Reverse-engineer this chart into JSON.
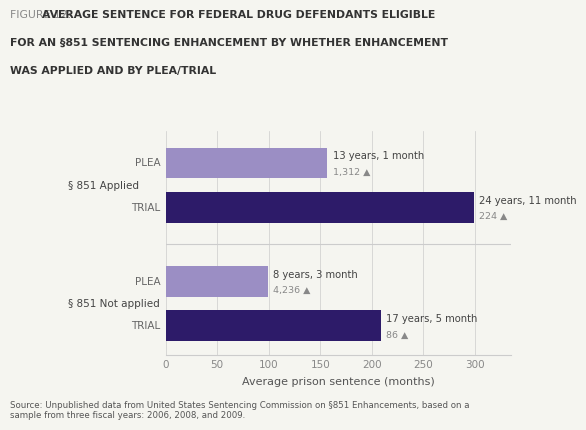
{
  "title_prefix": "FIGURE 12: ",
  "title_lines": [
    "AVERAGE SENTENCE FOR FEDERAL DRUG DEFENDANTS ELIGIBLE",
    "FOR AN §851 SENTENCING ENHANCEMENT BY WHETHER ENHANCEMENT",
    "WAS APPLIED AND BY PLEA/TRIAL"
  ],
  "bars": [
    {
      "label": "PLEA",
      "group": "§ 851 Applied",
      "value": 157,
      "color": "#9b8ec4",
      "annotation": "13 years, 1 month",
      "n": "1,312"
    },
    {
      "label": "TRIAL",
      "group": "§ 851 Applied",
      "value": 299,
      "color": "#2d1b69",
      "annotation": "24 years, 11 month",
      "n": "224"
    },
    {
      "label": "PLEA",
      "group": "§ 851 Not applied",
      "value": 99,
      "color": "#9b8ec4",
      "annotation": "8 years, 3 month",
      "n": "4,236"
    },
    {
      "label": "TRIAL",
      "group": "§ 851 Not applied",
      "value": 209,
      "color": "#2d1b69",
      "annotation": "17 years, 5 month",
      "n": "86"
    }
  ],
  "xlabel": "Average prison sentence (months)",
  "xticks": [
    0,
    50,
    100,
    150,
    200,
    250,
    300
  ],
  "xlim": [
    0,
    335
  ],
  "source_text": "Source: Unpublished data from United States Sentencing Commission on §851 Enhancements, based on a\nsample from three fiscal years: 2006, 2008, and 2009.",
  "background_color": "#f5f5f0",
  "bar_height": 0.52,
  "group_labels": [
    "§ 851 Applied",
    "§ 851 Not applied"
  ],
  "group_label_color": "#444444",
  "annotation_color": "#444444",
  "n_color": "#888888",
  "bar_label_color": "#666666",
  "title_prefix_color": "#888888",
  "title_color": "#333333",
  "source_color": "#555555"
}
